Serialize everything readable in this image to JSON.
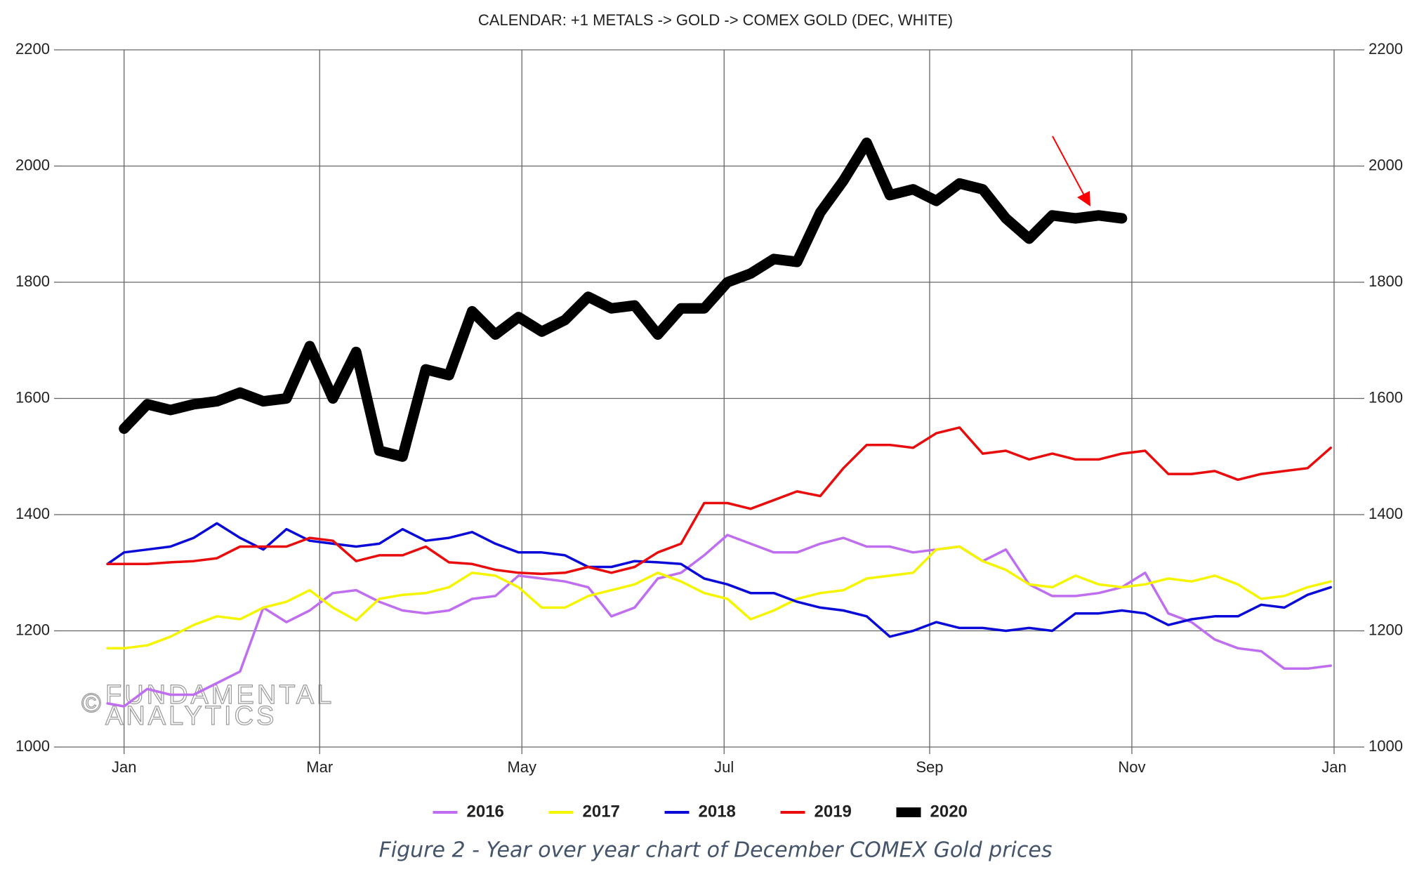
{
  "chart_data": {
    "type": "line",
    "title": "CALENDAR: +1 METALS -> GOLD -> COMEX GOLD (DEC, WHITE)",
    "caption": "Figure 2 - Year over year chart of December COMEX Gold prices",
    "watermark": {
      "symbol": "©",
      "lines": [
        "FUNDAMENTAL",
        "ANALYTICS"
      ]
    },
    "xlim": [
      -19,
      372
    ],
    "xticks": [
      {
        "value": 0,
        "label": "Jan"
      },
      {
        "value": 59,
        "label": "Mar"
      },
      {
        "value": 120,
        "label": "May"
      },
      {
        "value": 181,
        "label": "Jul"
      },
      {
        "value": 243,
        "label": "Sep"
      },
      {
        "value": 304,
        "label": "Nov"
      },
      {
        "value": 365,
        "label": "Jan"
      }
    ],
    "ylim": [
      1000,
      2200
    ],
    "yticks": [
      1000,
      1200,
      1400,
      1600,
      1800,
      2000,
      2200
    ],
    "grid": true,
    "legend": "bottom",
    "x": [
      -5,
      0,
      7,
      14,
      21,
      28,
      35,
      42,
      49,
      56,
      63,
      70,
      77,
      84,
      91,
      98,
      105,
      112,
      119,
      126,
      133,
      140,
      147,
      154,
      161,
      168,
      175,
      182,
      189,
      196,
      203,
      210,
      217,
      224,
      231,
      238,
      245,
      252,
      259,
      266,
      273,
      280,
      287,
      294,
      301,
      308,
      315,
      322,
      329,
      336,
      343,
      350,
      357,
      364
    ],
    "series": [
      {
        "name": "2016",
        "color": "#c06ef0",
        "values": [
          1075,
          1070,
          1100,
          1090,
          1090,
          1110,
          1130,
          1240,
          1215,
          1235,
          1265,
          1270,
          1250,
          1235,
          1230,
          1235,
          1255,
          1260,
          1295,
          1290,
          1285,
          1275,
          1225,
          1240,
          1290,
          1300,
          1330,
          1365,
          1350,
          1335,
          1335,
          1350,
          1360,
          1345,
          1345,
          1335,
          1340,
          1345,
          1320,
          1340,
          1280,
          1260,
          1260,
          1265,
          1275,
          1300,
          1230,
          1215,
          1185,
          1170,
          1165,
          1135,
          1135,
          1140
        ]
      },
      {
        "name": "2017",
        "color": "#f5f500",
        "values": [
          1170,
          1170,
          1175,
          1190,
          1210,
          1225,
          1220,
          1240,
          1250,
          1270,
          1240,
          1218,
          1255,
          1262,
          1265,
          1275,
          1300,
          1295,
          1275,
          1240,
          1240,
          1260,
          1270,
          1280,
          1300,
          1285,
          1265,
          1255,
          1220,
          1235,
          1255,
          1265,
          1270,
          1290,
          1295,
          1300,
          1340,
          1345,
          1320,
          1305,
          1280,
          1275,
          1295,
          1280,
          1275,
          1280,
          1290,
          1285,
          1295,
          1280,
          1255,
          1260,
          1275,
          1285
        ]
      },
      {
        "name": "2018",
        "color": "#0a0ad8",
        "values": [
          1315,
          1335,
          1340,
          1345,
          1360,
          1385,
          1360,
          1340,
          1375,
          1355,
          1350,
          1345,
          1350,
          1375,
          1355,
          1360,
          1370,
          1350,
          1335,
          1335,
          1330,
          1310,
          1310,
          1320,
          1318,
          1315,
          1290,
          1280,
          1265,
          1265,
          1250,
          1240,
          1235,
          1225,
          1190,
          1200,
          1215,
          1205,
          1205,
          1200,
          1205,
          1200,
          1230,
          1230,
          1235,
          1230,
          1210,
          1220,
          1225,
          1225,
          1245,
          1240,
          1262,
          1275
        ]
      },
      {
        "name": "2019",
        "color": "#e80c0c",
        "values": [
          1315,
          1315,
          1315,
          1318,
          1320,
          1325,
          1345,
          1345,
          1345,
          1360,
          1355,
          1320,
          1330,
          1330,
          1345,
          1318,
          1315,
          1305,
          1300,
          1298,
          1300,
          1310,
          1300,
          1310,
          1335,
          1350,
          1420,
          1420,
          1410,
          1425,
          1440,
          1432,
          1480,
          1520,
          1520,
          1515,
          1540,
          1550,
          1505,
          1510,
          1495,
          1505,
          1495,
          1495,
          1505,
          1510,
          1470,
          1470,
          1475,
          1460,
          1470,
          1475,
          1480,
          1515
        ]
      },
      {
        "name": "2020",
        "color": "#000000",
        "values": [
          null,
          1548,
          1590,
          1580,
          1590,
          1595,
          1610,
          1595,
          1600,
          1690,
          1600,
          1680,
          1510,
          1500,
          1650,
          1640,
          1750,
          1710,
          1740,
          1715,
          1735,
          1775,
          1755,
          1760,
          1710,
          1755,
          1755,
          1800,
          1815,
          1840,
          1835,
          1920,
          1975,
          2040,
          1950,
          1960,
          1940,
          1970,
          1960,
          1910,
          1875,
          1915,
          1910,
          1915,
          1910,
          null,
          null,
          null,
          null,
          null,
          null,
          null,
          null,
          null
        ]
      }
    ]
  }
}
